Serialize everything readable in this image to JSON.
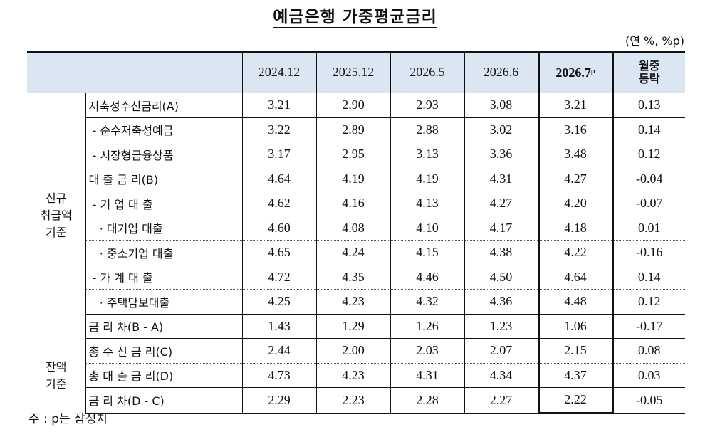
{
  "title": "예금은행 가중평균금리",
  "unit": "(연 %, %p)",
  "header": {
    "columns": [
      "2024.12",
      "2025.12",
      "2026.5",
      "2026.6",
      "2026.7ᵖ"
    ],
    "change_line1": "월중",
    "change_line2": "등락"
  },
  "groups": {
    "new": [
      "신규",
      "취급액",
      "기준"
    ],
    "balance": [
      "잔액",
      "기준"
    ]
  },
  "rows": [
    {
      "label": "저축성수신금리(A)",
      "values": [
        "3.21",
        "2.90",
        "2.93",
        "3.08",
        "3.21",
        "0.13"
      ]
    },
    {
      "label": " - 순수저축성예금",
      "values": [
        "3.22",
        "2.89",
        "2.88",
        "3.02",
        "3.16",
        "0.14"
      ]
    },
    {
      "label": " - 시장형금융상품",
      "values": [
        "3.17",
        "2.95",
        "3.13",
        "3.36",
        "3.48",
        "0.12"
      ]
    },
    {
      "label": "대 출 금 리(B)",
      "values": [
        "4.64",
        "4.19",
        "4.19",
        "4.31",
        "4.27",
        "-0.04"
      ]
    },
    {
      "label": " - 기 업 대 출",
      "values": [
        "4.62",
        "4.16",
        "4.13",
        "4.27",
        "4.20",
        "-0.07"
      ]
    },
    {
      "label": "   · 대기업 대출",
      "values": [
        "4.60",
        "4.08",
        "4.10",
        "4.17",
        "4.18",
        "0.01"
      ]
    },
    {
      "label": "   · 중소기업 대출",
      "values": [
        "4.65",
        "4.24",
        "4.15",
        "4.38",
        "4.22",
        "-0.16"
      ]
    },
    {
      "label": " - 가 계 대 출",
      "values": [
        "4.72",
        "4.35",
        "4.46",
        "4.50",
        "4.64",
        "0.14"
      ]
    },
    {
      "label": "   · 주택담보대출",
      "values": [
        "4.25",
        "4.23",
        "4.32",
        "4.36",
        "4.48",
        "0.12"
      ]
    },
    {
      "label": "금 리 차(B - A)",
      "values": [
        "1.43",
        "1.29",
        "1.26",
        "1.23",
        "1.06",
        "-0.17"
      ]
    },
    {
      "label": "총 수 신 금 리(C)",
      "values": [
        "2.44",
        "2.00",
        "2.03",
        "2.07",
        "2.15",
        "0.08"
      ]
    },
    {
      "label": "총 대 출 금 리(D)",
      "values": [
        "4.73",
        "4.23",
        "4.31",
        "4.34",
        "4.37",
        "0.03"
      ]
    },
    {
      "label": "금 리 차(D - C)",
      "values": [
        "2.29",
        "2.23",
        "2.28",
        "2.27",
        "2.22",
        "-0.05"
      ]
    }
  ],
  "note": "주 : p는 잠정치"
}
